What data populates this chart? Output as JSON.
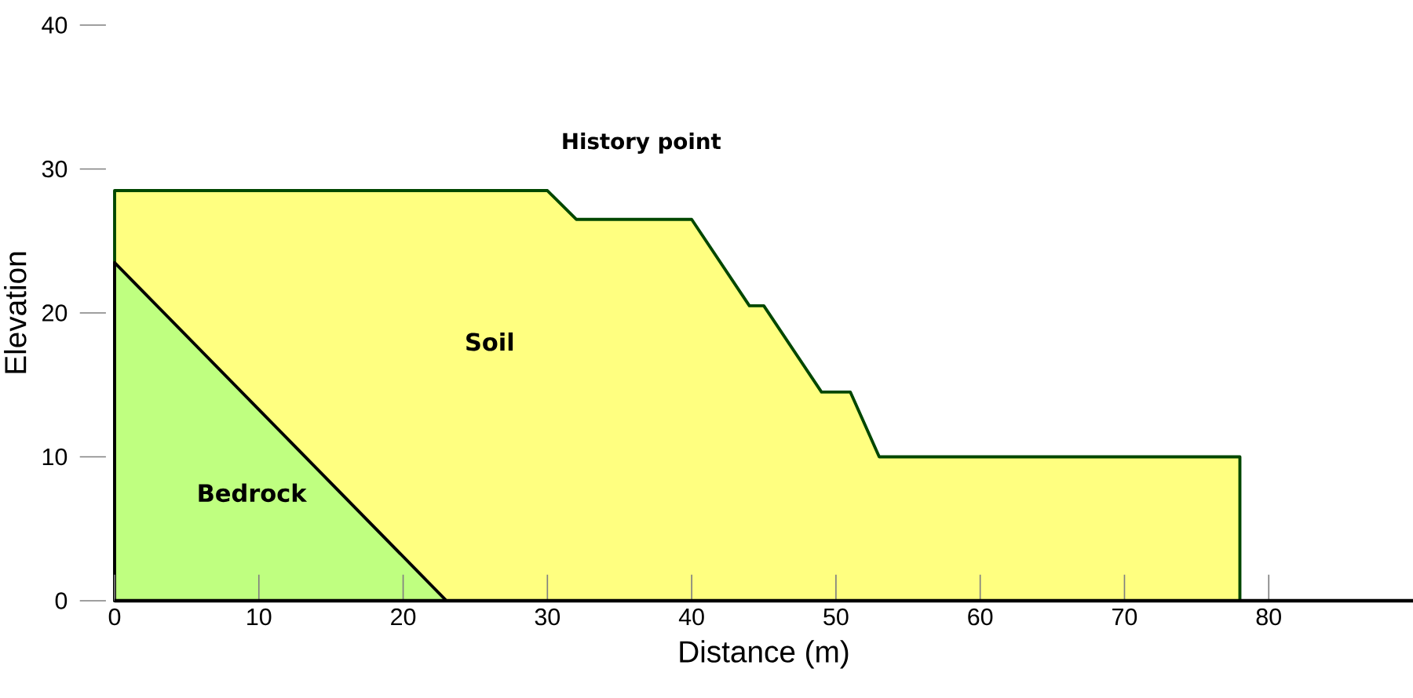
{
  "chart_data": {
    "type": "area",
    "xlabel": "Distance (m)",
    "ylabel": "Elevation",
    "annotations": [
      "History point"
    ],
    "x": [
      0,
      30,
      32,
      40,
      44,
      45,
      49,
      51,
      53,
      78
    ],
    "series": [
      {
        "name": "Soil",
        "color": "#ffff80",
        "values": [
          28.5,
          28.5,
          26.5,
          26.5,
          20.5,
          20.5,
          14.5,
          14.5,
          10,
          10
        ]
      },
      {
        "name": "Bedrock",
        "color": "#bfff80",
        "x": [
          0,
          23
        ],
        "values": [
          23.5,
          0
        ]
      }
    ],
    "xlim": [
      0,
      90
    ],
    "ylim": [
      0,
      40
    ],
    "xticks": [
      0,
      10,
      20,
      30,
      40,
      50,
      60,
      70,
      80
    ],
    "yticks": [
      0,
      10,
      20,
      30,
      40
    ],
    "marker": "none"
  }
}
